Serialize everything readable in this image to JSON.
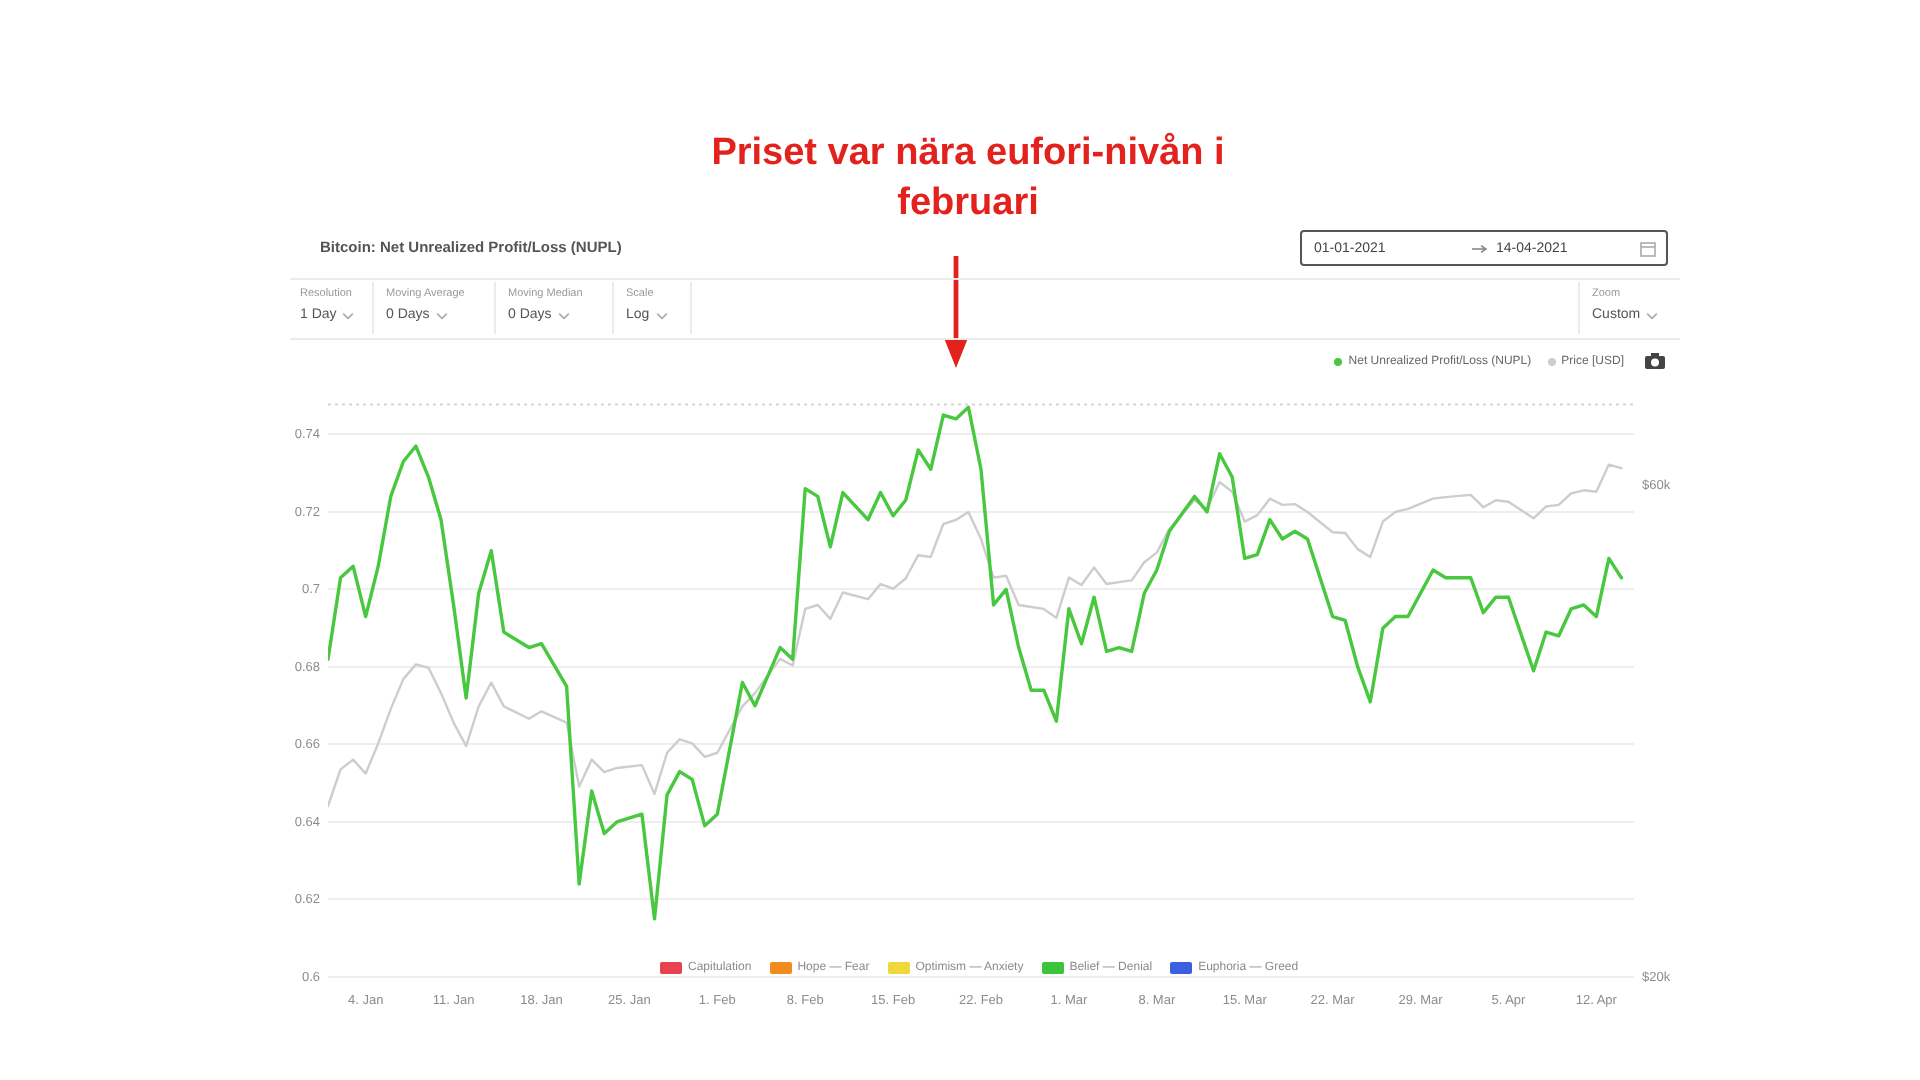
{
  "chart_data": {
    "type": "line",
    "title": "Priset var nära eufori-nivån i februari",
    "subtitle": "Bitcoin: Net Unrealized Profit/Loss (NUPL)",
    "annotations": [
      "Capitulation",
      "Hope — Fear",
      "Optimism — Anxiety",
      "Belief — Denial",
      "Euphoria — Greed",
      "Resolution",
      "1 Day",
      "Moving Average",
      "0 Days",
      "Moving Median",
      "0 Days",
      "Scale",
      "Log",
      "Zoom",
      "Custom",
      "01-01-2021",
      "14-04-2021"
    ],
    "x": [
      "2021-01-01",
      "2021-01-02",
      "2021-01-03",
      "2021-01-04",
      "2021-01-05",
      "2021-01-06",
      "2021-01-07",
      "2021-01-08",
      "2021-01-09",
      "2021-01-10",
      "2021-01-11",
      "2021-01-12",
      "2021-01-13",
      "2021-01-14",
      "2021-01-15",
      "2021-01-17",
      "2021-01-18",
      "2021-01-20",
      "2021-01-21",
      "2021-01-22",
      "2021-01-23",
      "2021-01-24",
      "2021-01-26",
      "2021-01-27",
      "2021-01-28",
      "2021-01-29",
      "2021-01-30",
      "2021-01-31",
      "2021-02-01",
      "2021-02-03",
      "2021-02-04",
      "2021-02-06",
      "2021-02-07",
      "2021-02-08",
      "2021-02-09",
      "2021-02-10",
      "2021-02-11",
      "2021-02-13",
      "2021-02-14",
      "2021-02-15",
      "2021-02-16",
      "2021-02-17",
      "2021-02-18",
      "2021-02-19",
      "2021-02-20",
      "2021-02-21",
      "2021-02-22",
      "2021-02-23",
      "2021-02-24",
      "2021-02-25",
      "2021-02-26",
      "2021-02-27",
      "2021-02-28",
      "2021-03-01",
      "2021-03-02",
      "2021-03-03",
      "2021-03-04",
      "2021-03-05",
      "2021-03-06",
      "2021-03-07",
      "2021-03-08",
      "2021-03-09",
      "2021-03-11",
      "2021-03-12",
      "2021-03-13",
      "2021-03-14",
      "2021-03-15",
      "2021-03-16",
      "2021-03-17",
      "2021-03-18",
      "2021-03-19",
      "2021-03-20",
      "2021-03-22",
      "2021-03-23",
      "2021-03-24",
      "2021-03-25",
      "2021-03-26",
      "2021-03-27",
      "2021-03-28",
      "2021-03-30",
      "2021-03-31",
      "2021-04-02",
      "2021-04-03",
      "2021-04-04",
      "2021-04-05",
      "2021-04-07",
      "2021-04-08",
      "2021-04-09",
      "2021-04-10",
      "2021-04-11",
      "2021-04-12",
      "2021-04-13",
      "2021-04-14"
    ],
    "series": [
      {
        "name": "Net Unrealized Profit/Loss (NUPL)",
        "color": "#47c83e",
        "values": [
          0.682,
          0.703,
          0.706,
          0.693,
          0.706,
          0.724,
          0.733,
          0.737,
          0.729,
          0.718,
          0.696,
          0.672,
          0.699,
          0.71,
          0.689,
          0.685,
          0.686,
          0.675,
          0.624,
          0.648,
          0.637,
          0.64,
          0.642,
          0.615,
          0.647,
          0.653,
          0.651,
          0.639,
          0.642,
          0.676,
          0.67,
          0.685,
          0.682,
          0.726,
          0.724,
          0.711,
          0.725,
          0.718,
          0.725,
          0.719,
          0.723,
          0.736,
          0.731,
          0.745,
          0.744,
          0.747,
          0.731,
          0.696,
          0.7,
          0.685,
          0.674,
          0.674,
          0.666,
          0.695,
          0.686,
          0.698,
          0.684,
          0.685,
          0.684,
          0.699,
          0.705,
          0.715,
          0.724,
          0.72,
          0.735,
          0.729,
          0.708,
          0.709,
          0.718,
          0.713,
          0.715,
          0.713,
          0.693,
          0.692,
          0.68,
          0.671,
          0.69,
          0.693,
          0.693,
          0.705,
          0.703,
          0.703,
          0.694,
          0.698,
          0.698,
          0.679,
          0.689,
          0.688,
          0.695,
          0.696,
          0.693,
          0.708,
          0.703
        ]
      },
      {
        "name": "Price [USD]",
        "color": "#cdcdcd",
        "axis": "y2",
        "values": [
          29300,
          31800,
          32500,
          31500,
          33700,
          36400,
          38900,
          40200,
          39900,
          37700,
          35300,
          33500,
          36600,
          38600,
          36600,
          35600,
          36200,
          35300,
          30600,
          32500,
          31600,
          31900,
          32100,
          30100,
          33000,
          34000,
          33700,
          32700,
          33000,
          36600,
          37700,
          40700,
          40100,
          45500,
          45900,
          44500,
          47200,
          46500,
          48100,
          47600,
          48700,
          51300,
          51100,
          55000,
          55500,
          56500,
          53200,
          48800,
          49000,
          45900,
          45700,
          45500,
          44600,
          48800,
          48000,
          49900,
          48100,
          48300,
          48500,
          50500,
          51600,
          54400,
          58000,
          56900,
          60400,
          59100,
          55300,
          56100,
          58200,
          57400,
          57500,
          56500,
          54000,
          53900,
          52000,
          51100,
          55300,
          56500,
          56900,
          58200,
          58400,
          58700,
          57100,
          58000,
          57800,
          55700,
          57200,
          57400,
          58900,
          59300,
          59100,
          62800,
          62300
        ]
      }
    ],
    "xlim": [
      "2021-01-01",
      "2021-04-15"
    ],
    "xticks": [
      {
        "value": "2021-01-04",
        "label": "4. Jan"
      },
      {
        "value": "2021-01-11",
        "label": "11. Jan"
      },
      {
        "value": "2021-01-18",
        "label": "18. Jan"
      },
      {
        "value": "2021-01-25",
        "label": "25. Jan"
      },
      {
        "value": "2021-02-01",
        "label": "1. Feb"
      },
      {
        "value": "2021-02-08",
        "label": "8. Feb"
      },
      {
        "value": "2021-02-15",
        "label": "15. Feb"
      },
      {
        "value": "2021-02-22",
        "label": "22. Feb"
      },
      {
        "value": "2021-03-01",
        "label": "1. Mar"
      },
      {
        "value": "2021-03-08",
        "label": "8. Mar"
      },
      {
        "value": "2021-03-15",
        "label": "15. Mar"
      },
      {
        "value": "2021-03-22",
        "label": "22. Mar"
      },
      {
        "value": "2021-03-29",
        "label": "29. Mar"
      },
      {
        "value": "2021-04-05",
        "label": "5. Apr"
      },
      {
        "value": "2021-04-12",
        "label": "12. Apr"
      }
    ],
    "ylim": [
      0.6,
      0.748
    ],
    "yticks": [
      0.6,
      0.62,
      0.64,
      0.66,
      0.68,
      0.7,
      0.72,
      0.74
    ],
    "y2lim": [
      20000,
      72000
    ],
    "y2ticks": [
      {
        "value": 20000,
        "label": "$20k"
      },
      {
        "value": 60000,
        "label": "$60k"
      }
    ],
    "log": "y2",
    "grid": "y",
    "legend": "top right"
  }
}
